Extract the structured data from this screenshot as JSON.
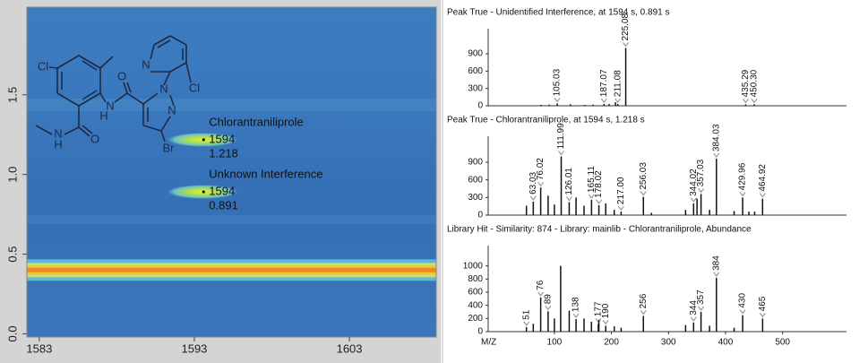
{
  "chart_data": [
    {
      "type": "contour",
      "xlim": [
        1582.2,
        1608.6
      ],
      "ylim": [
        -0.02,
        2.05
      ],
      "xticks": [
        1583,
        1593,
        1603
      ],
      "yticks": [
        {
          "value": 0,
          "label": "0.0"
        },
        {
          "value": 0.5,
          "label": "0.5"
        },
        {
          "value": 1,
          "label": "1.0"
        },
        {
          "value": 1.5,
          "label": "1.5"
        }
      ],
      "bands": [
        0.4
      ],
      "peaks": [
        {
          "name": "Chlorantraniliprole",
          "x": 1594,
          "y": 1.218
        },
        {
          "name": "Unknown Interference",
          "x": 1594,
          "y": 0.891
        }
      ],
      "structure_labels": [
        "Cl",
        "N",
        "H",
        "O",
        "N",
        "N",
        "Br",
        "N",
        "Cl",
        "N",
        "H",
        "O"
      ]
    },
    {
      "type": "stem",
      "title": "Peak True - Unidentified Interference, at 1594 s, 0.891 s",
      "xlim": [
        -16,
        612
      ],
      "ylim": [
        0,
        1210
      ],
      "yticks": [
        0,
        300,
        600,
        900
      ],
      "series": [
        {
          "color": "#111111",
          "labeled": true,
          "x": [
            105.03,
            187.07,
            211.08,
            225.08,
            435.29,
            450.3
          ],
          "x_labels": [
            "105.03",
            "187.07",
            "211.08",
            "225.08",
            "435.29",
            "450.30"
          ],
          "values": [
            40,
            30,
            30,
            1000,
            25,
            25
          ]
        },
        {
          "color": "#111111",
          "x": [
            77,
            91,
            128,
            153,
            168,
            196,
            207
          ],
          "values": [
            15,
            20,
            25,
            15,
            20,
            30,
            60
          ]
        }
      ]
    },
    {
      "type": "stem",
      "title": "Peak True - Chlorantraniliprole, at 1594 s, 1.218 s",
      "xlim": [
        -16,
        612
      ],
      "ylim": [
        0,
        1220
      ],
      "yticks": [
        0,
        300,
        600,
        900
      ],
      "series": [
        {
          "color": "#111111",
          "labeled": true,
          "x": [
            63.03,
            76.02,
            111.99,
            126.01,
            165.11,
            178.02,
            217,
            256.03,
            344.02,
            357.03,
            384.03,
            429.96,
            464.92
          ],
          "x_labels": [
            "63.03",
            "76.02",
            "111.99",
            "126.01",
            "165.11",
            "178.02",
            "217.00",
            "256.03",
            "344.02",
            "357.03",
            "384.03",
            "429.96",
            "464.92"
          ],
          "values": [
            230,
            470,
            1000,
            220,
            260,
            170,
            60,
            310,
            200,
            360,
            960,
            300,
            280
          ]
        },
        {
          "color": "#111111",
          "x": [
            51,
            89,
            100,
            138,
            152,
            190,
            205,
            270,
            330,
            350,
            372,
            415,
            441,
            451
          ],
          "values": [
            160,
            330,
            180,
            300,
            160,
            200,
            90,
            40,
            90,
            280,
            90,
            70,
            60,
            60
          ]
        }
      ]
    },
    {
      "type": "stem",
      "title": "Library Hit - Similarity: 874 - Library: mainlib - Chlorantraniliprole, Abundance",
      "xlim": [
        -16,
        612
      ],
      "ylim": [
        0,
        1200
      ],
      "yticks": [
        0,
        200,
        400,
        600,
        800,
        1000
      ],
      "xticks": [
        100,
        200,
        300,
        400,
        500
      ],
      "xlabel": "M/Z",
      "series": [
        {
          "color": "#111111",
          "labeled": true,
          "x": [
            51,
            76,
            89,
            138,
            177,
            190,
            256,
            344,
            357,
            384,
            430,
            465
          ],
          "x_labels": [
            "51",
            "76",
            "89",
            "138",
            "177",
            "190",
            "256",
            "344",
            "357",
            "384",
            "430",
            "465"
          ],
          "values": [
            70,
            520,
            310,
            190,
            120,
            90,
            240,
            140,
            300,
            820,
            250,
            200
          ]
        },
        {
          "color": "#111111",
          "x": [
            63,
            100,
            111,
            126,
            152,
            165,
            178,
            205,
            217,
            330,
            372,
            415
          ],
          "values": [
            120,
            200,
            1000,
            320,
            200,
            150,
            180,
            80,
            60,
            100,
            90,
            60
          ]
        }
      ]
    }
  ]
}
